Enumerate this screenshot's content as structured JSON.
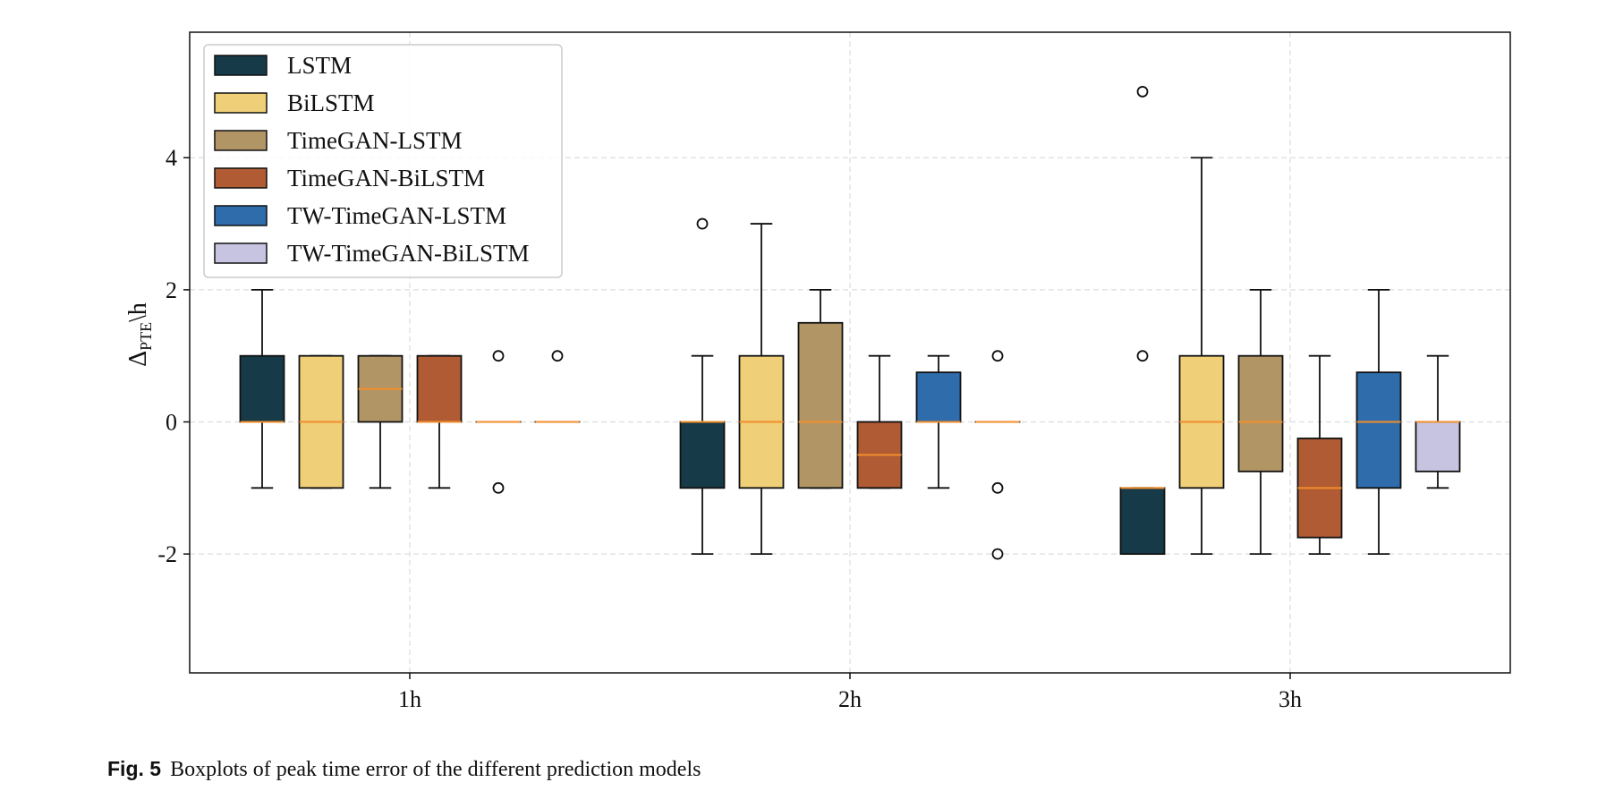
{
  "chart_data": {
    "type": "boxplot",
    "title": "",
    "xlabel": "",
    "ylabel": "Δ",
    "ylabel_subscript": "PTE",
    "ylabel_suffix": "\\h",
    "ylim": [
      -3.8,
      5.9
    ],
    "yticks": [
      -2,
      0,
      2,
      4
    ],
    "ytick_labels": [
      "-2",
      "0",
      "2",
      "4"
    ],
    "grid": true,
    "legend_position": "top-left",
    "categories": [
      "1h",
      "2h",
      "3h"
    ],
    "series": [
      {
        "name": "LSTM",
        "color": "#173a48",
        "boxes": [
          {
            "q1": 0,
            "median": 0,
            "q3": 1,
            "whislo": -1,
            "whishi": 2,
            "fliers": []
          },
          {
            "q1": -1,
            "median": 0,
            "q3": 0,
            "whislo": -2,
            "whishi": 1,
            "fliers": [
              3
            ]
          },
          {
            "q1": -2,
            "median": -1,
            "q3": -1,
            "whislo": -2,
            "whishi": -1,
            "fliers": [
              5,
              1
            ]
          }
        ]
      },
      {
        "name": "BiLSTM",
        "color": "#efcf78",
        "boxes": [
          {
            "q1": -1,
            "median": 0,
            "q3": 1,
            "whislo": -1,
            "whishi": 1,
            "fliers": []
          },
          {
            "q1": -1,
            "median": 0,
            "q3": 1,
            "whislo": -2,
            "whishi": 3,
            "fliers": []
          },
          {
            "q1": -1,
            "median": 0,
            "q3": 1,
            "whislo": -2,
            "whishi": 4,
            "fliers": []
          }
        ]
      },
      {
        "name": "TimeGAN-LSTM",
        "color": "#b29565",
        "boxes": [
          {
            "q1": 0,
            "median": 0.5,
            "q3": 1,
            "whislo": -1,
            "whishi": 1,
            "fliers": []
          },
          {
            "q1": -1,
            "median": 0,
            "q3": 1.5,
            "whislo": -1,
            "whishi": 2,
            "fliers": []
          },
          {
            "q1": -0.75,
            "median": 0,
            "q3": 1,
            "whislo": -2,
            "whishi": 2,
            "fliers": []
          }
        ]
      },
      {
        "name": "TimeGAN-BiLSTM",
        "color": "#b05b34",
        "boxes": [
          {
            "q1": 0,
            "median": 0,
            "q3": 1,
            "whislo": -1,
            "whishi": 1,
            "fliers": []
          },
          {
            "q1": -1,
            "median": -0.5,
            "q3": 0,
            "whislo": -1,
            "whishi": 1,
            "fliers": []
          },
          {
            "q1": -1.75,
            "median": -1,
            "q3": -0.25,
            "whislo": -2,
            "whishi": 1,
            "fliers": []
          }
        ]
      },
      {
        "name": "TW-TimeGAN-LSTM",
        "color": "#2f6cab",
        "boxes": [
          {
            "q1": 0,
            "median": 0,
            "q3": 0,
            "whislo": 0,
            "whishi": 0,
            "fliers": [
              1,
              -1
            ]
          },
          {
            "q1": 0,
            "median": 0,
            "q3": 0.75,
            "whislo": -1,
            "whishi": 1,
            "fliers": []
          },
          {
            "q1": -1,
            "median": 0,
            "q3": 0.75,
            "whislo": -2,
            "whishi": 2,
            "fliers": []
          }
        ]
      },
      {
        "name": "TW-TimeGAN-BiLSTM",
        "color": "#c7c4e1",
        "boxes": [
          {
            "q1": 0,
            "median": 0,
            "q3": 0,
            "whislo": 0,
            "whishi": 0,
            "fliers": [
              1
            ]
          },
          {
            "q1": 0,
            "median": 0,
            "q3": 0,
            "whislo": 0,
            "whishi": 0,
            "fliers": [
              1,
              -1,
              -2
            ]
          },
          {
            "q1": -0.75,
            "median": 0,
            "q3": 0,
            "whislo": -1,
            "whishi": 1,
            "fliers": []
          }
        ]
      }
    ],
    "median_color": "#f28e2b"
  },
  "caption": {
    "label": "Fig. 5",
    "text": "Boxplots of peak time error of the different prediction models"
  }
}
